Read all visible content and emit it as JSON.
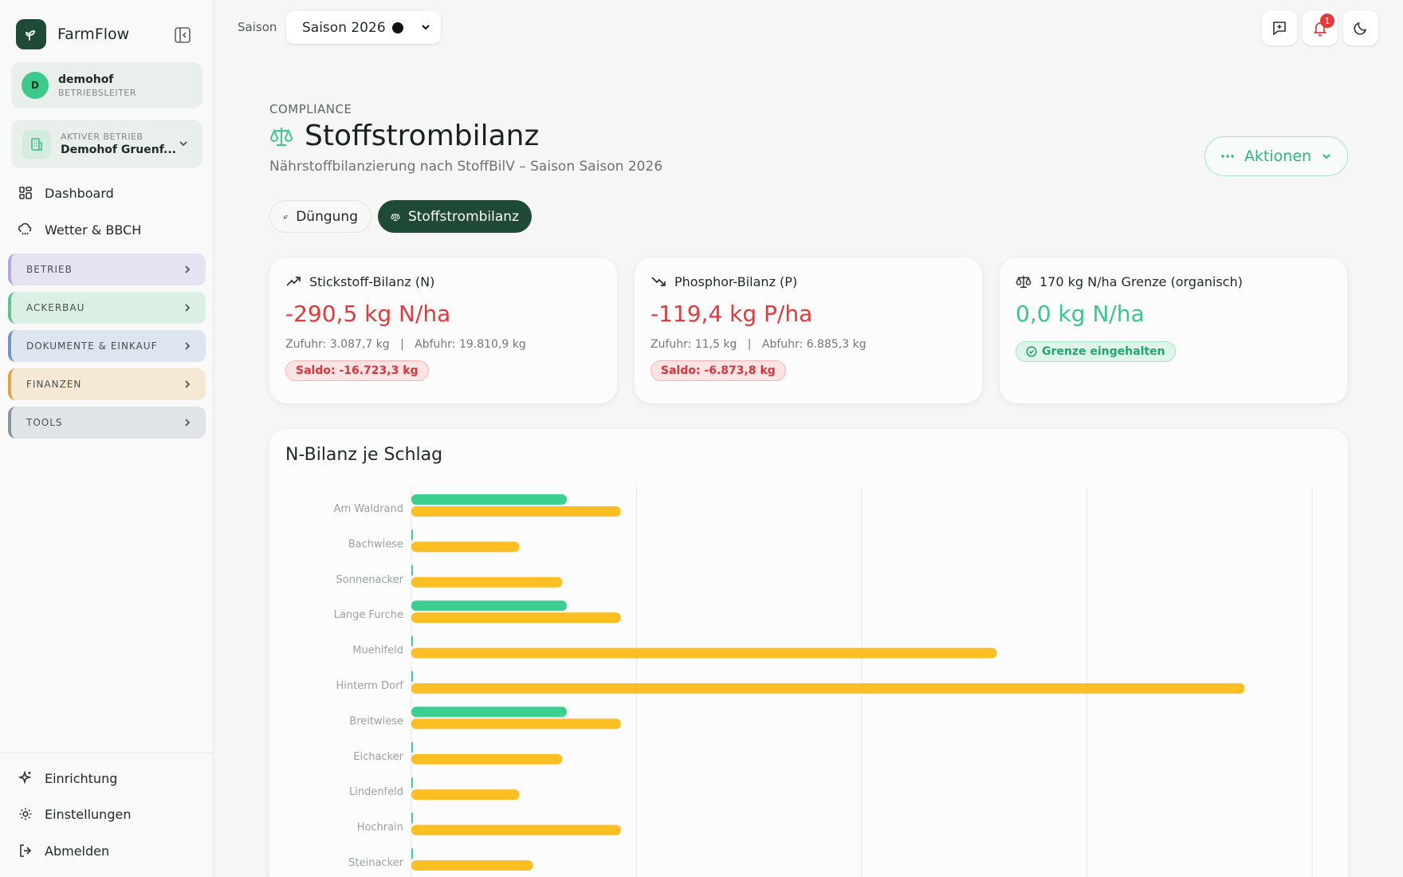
{
  "app": {
    "name": "FarmFlow"
  },
  "user": {
    "initial": "D",
    "name": "demohof",
    "role": "BETRIEBSLEITER"
  },
  "betrieb": {
    "label": "AKTIVER BETRIEB",
    "name": "Demohof Gruenf..."
  },
  "nav": {
    "dashboard": "Dashboard",
    "weather": "Wetter & BBCH"
  },
  "sections": [
    {
      "label": "BETRIEB",
      "bg": "#e7e2f3",
      "border": "#b7a6e0"
    },
    {
      "label": "ACKERBAU",
      "bg": "#dcefe5",
      "border": "#5bc596"
    },
    {
      "label": "DOKUMENTE & EINKAUF",
      "bg": "#dde6f0",
      "border": "#6f95c4"
    },
    {
      "label": "FINANZEN",
      "bg": "#f5e9d6",
      "border": "#e2a43e"
    },
    {
      "label": "TOOLS",
      "bg": "#e1e4e6",
      "border": "#8a949b"
    }
  ],
  "footer_nav": {
    "setup": "Einrichtung",
    "settings": "Einstellungen",
    "logout": "Abmelden"
  },
  "topbar": {
    "season_label": "Saison",
    "season_value": "Saison 2026",
    "notification_count": "1"
  },
  "header": {
    "eyebrow": "COMPLIANCE",
    "title": "Stoffstrombilanz",
    "subtitle": "Nährstoffbilanzierung nach StoffBilV – Saison Saison 2026",
    "actions_label": "Aktionen"
  },
  "tabs": {
    "duengung": "Düngung",
    "stoffstrom": "Stoffstrombilanz"
  },
  "cards": {
    "nitrogen": {
      "title": "Stickstoff-Bilanz (N)",
      "value": "-290,5 kg N/ha",
      "supply": "Zufuhr: 3.087,7 kg",
      "removal": "Abfuhr: 19.810,9 kg",
      "saldo": "Saldo: -16.723,3 kg"
    },
    "phosphor": {
      "title": "Phosphor-Bilanz (P)",
      "value": "-119,4 kg P/ha",
      "supply": "Zufuhr: 11,5 kg",
      "removal": "Abfuhr: 6.885,3 kg",
      "saldo": "Saldo: -6.873,8 kg"
    },
    "limit": {
      "title": "170 kg N/ha Grenze (organisch)",
      "value": "0,0 kg N/ha",
      "status": "Grenze eingehalten"
    }
  },
  "separator": "|",
  "chart_title": "N-Bilanz je Schlag",
  "chart_data": {
    "type": "bar",
    "orientation": "horizontal",
    "categories": [
      "Am Waldrand",
      "Bachwiese",
      "Sonnenacker",
      "Lange Furche",
      "Muehlfeld",
      "Hinterm Dorf",
      "Breitwiese",
      "Eichacker",
      "Lindenfeld",
      "Hochrain",
      "Steinacker"
    ],
    "series": [
      {
        "color": "#3ccf90",
        "values": [
          69,
          0,
          0,
          69,
          0,
          0,
          69,
          0,
          0,
          0,
          0
        ]
      },
      {
        "color": "#fbbf24",
        "values": [
          93,
          48,
          67,
          93,
          260,
          370,
          93,
          67,
          48,
          93,
          54
        ]
      }
    ],
    "xlim": [
      0,
      400
    ],
    "grid": true
  }
}
